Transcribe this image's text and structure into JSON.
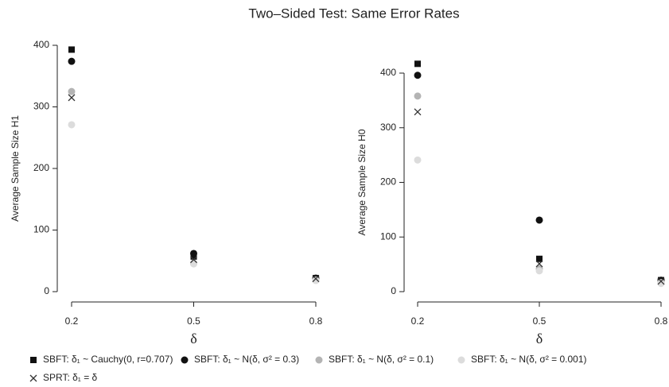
{
  "title": "Two–Sided Test: Same Error Rates",
  "chart_data": [
    {
      "type": "scatter",
      "xlabel": "δ",
      "ylabel": "Average Sample Size H1",
      "x": [
        0.2,
        0.5,
        0.8
      ],
      "xlim": [
        0.2,
        0.8
      ],
      "xticks": [
        0.2,
        0.5,
        0.8
      ],
      "ylim": [
        0,
        400
      ],
      "yticks": [
        0,
        100,
        200,
        300,
        400
      ],
      "series": [
        {
          "name": "SBFT: δ₁ ~ Cauchy(0, r=0.707)",
          "marker": "square",
          "color": "#111111",
          "values": [
            393,
            57,
            22
          ]
        },
        {
          "name": "SBFT: δ₁ ~ N(δ, σ² = 0.3)",
          "marker": "circle",
          "color": "#111111",
          "values": [
            374,
            62,
            22
          ]
        },
        {
          "name": "SBFT: δ₁ ~ N(δ, σ² = 0.1)",
          "marker": "circle",
          "color": "#b4b4b4",
          "values": [
            325,
            46,
            19
          ]
        },
        {
          "name": "SBFT: δ₁ ~ N(δ, σ² = 0.001)",
          "marker": "circle",
          "color": "#dcdcdc",
          "values": [
            271,
            45,
            18
          ]
        },
        {
          "name": "SPRT: δ₁ = δ",
          "marker": "x",
          "color": "#333333",
          "values": [
            315,
            52,
            21
          ]
        }
      ]
    },
    {
      "type": "scatter",
      "xlabel": "δ",
      "ylabel": "Average Sample Size H0",
      "x": [
        0.2,
        0.5,
        0.8
      ],
      "xlim": [
        0.2,
        0.8
      ],
      "xticks": [
        0.2,
        0.5,
        0.8
      ],
      "ylim": [
        0,
        400
      ],
      "yticks": [
        0,
        100,
        200,
        300,
        400
      ],
      "series": [
        {
          "marker": "square",
          "color": "#111111",
          "values": [
            417,
            60,
            21
          ]
        },
        {
          "marker": "circle",
          "color": "#111111",
          "values": [
            396,
            131,
            21
          ]
        },
        {
          "marker": "circle",
          "color": "#b4b4b4",
          "values": [
            358,
            42,
            17
          ]
        },
        {
          "marker": "circle",
          "color": "#dcdcdc",
          "values": [
            241,
            38,
            15
          ]
        },
        {
          "marker": "x",
          "color": "#333333",
          "values": [
            329,
            51,
            19
          ]
        }
      ]
    }
  ]
}
